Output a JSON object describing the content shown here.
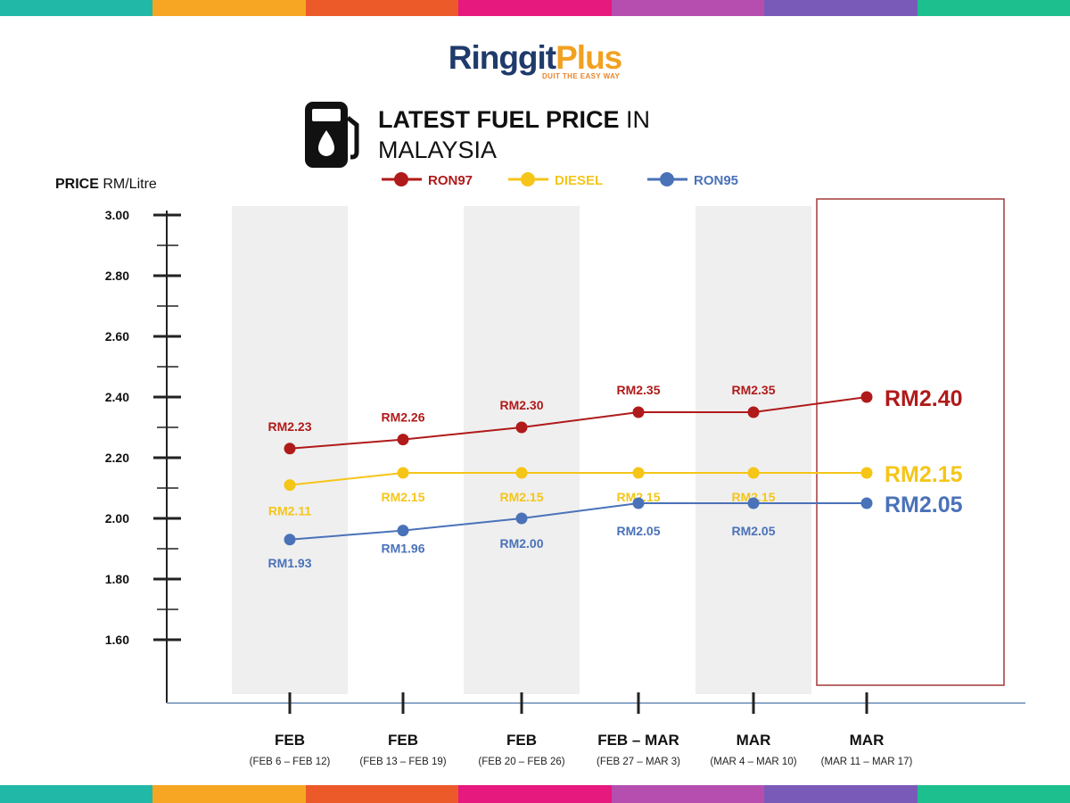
{
  "brand": {
    "name_part1": "Ringgit",
    "name_part2": "Plus",
    "tagline": "DUIT THE EASY WAY"
  },
  "header": {
    "title_bold": "LATEST FUEL PRICE",
    "title_rest": " IN",
    "title_line2": "MALAYSIA"
  },
  "colors": {
    "ron97": "#b01a1a",
    "diesel": "#f5c518",
    "ron95": "#4a72b8",
    "stripe": [
      "#22b8a8",
      "#f6a623",
      "#ec5a2a",
      "#e6197e",
      "#b64eb0",
      "#7a5ab8",
      "#1dbf8f"
    ]
  },
  "chart_data": {
    "type": "line",
    "ylabel_bold": "PRICE",
    "ylabel_unit": " RM/Litre",
    "ylim": [
      1.5,
      3.0
    ],
    "yticks": [
      "3.00",
      "2.80",
      "2.60",
      "2.40",
      "2.20",
      "2.00",
      "1.80",
      "1.60"
    ],
    "categories": [
      {
        "label": "FEB",
        "sub": "(FEB 6 – FEB 12)"
      },
      {
        "label": "FEB",
        "sub": "(FEB 13 – FEB 19)"
      },
      {
        "label": "FEB",
        "sub": "(FEB 20 – FEB 26)"
      },
      {
        "label": "FEB – MAR",
        "sub": "(FEB 27 – MAR 3)"
      },
      {
        "label": "MAR",
        "sub": "(MAR 4 – MAR 10)"
      },
      {
        "label": "MAR",
        "sub": "(MAR 11 – MAR 17)"
      }
    ],
    "series": [
      {
        "name": "RON97",
        "color": "#b01a1a",
        "values": [
          2.23,
          2.26,
          2.3,
          2.35,
          2.35,
          2.4
        ],
        "labels": [
          "RM2.23",
          "RM2.26",
          "RM2.30",
          "RM2.35",
          "RM2.35",
          "RM2.40"
        ]
      },
      {
        "name": "DIESEL",
        "color": "#f5c518",
        "values": [
          2.11,
          2.15,
          2.15,
          2.15,
          2.15,
          2.15
        ],
        "labels": [
          "RM2.11",
          "RM2.15",
          "RM2.15",
          "RM2.15",
          "RM2.15",
          "RM2.15"
        ]
      },
      {
        "name": "RON95",
        "color": "#4a72b8",
        "values": [
          1.93,
          1.96,
          2.0,
          2.05,
          2.05,
          2.05
        ],
        "labels": [
          "RM1.93",
          "RM1.96",
          "RM2.00",
          "RM2.05",
          "RM2.05",
          "RM2.05"
        ]
      }
    ],
    "highlight_category": 5,
    "shaded_categories": [
      0,
      2,
      4
    ],
    "grid": false,
    "legend_position": "top"
  }
}
